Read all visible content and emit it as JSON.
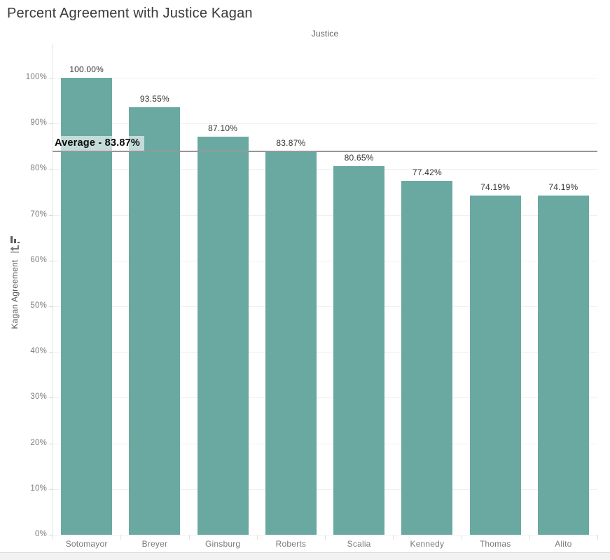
{
  "title": "Percent Agreement with Justice Kagan",
  "column_header": "Justice",
  "y_axis_title": "Kagan Agreement",
  "colors": {
    "bar": "#6aa9a2",
    "gridline": "#f0f0f0",
    "axis_line": "#e1e1e1",
    "average_line": "#979797",
    "value_label": "#333333",
    "tick_label": "#7e7e7e",
    "title_text": "#3a3a3a"
  },
  "chart_data": {
    "type": "bar",
    "title": "Percent Agreement with Justice Kagan",
    "xlabel": "Justice",
    "ylabel": "Kagan Agreement",
    "categories": [
      "Sotomayor",
      "Breyer",
      "Ginsburg",
      "Roberts",
      "Scalia",
      "Kennedy",
      "Thomas",
      "Alito"
    ],
    "values": [
      100.0,
      93.55,
      87.1,
      83.87,
      80.65,
      77.42,
      74.19,
      74.19
    ],
    "value_labels": [
      "100.00%",
      "93.55%",
      "87.10%",
      "83.87%",
      "80.65%",
      "77.42%",
      "74.19%",
      "74.19%"
    ],
    "y_ticks": [
      {
        "pct": 0,
        "label": "0%"
      },
      {
        "pct": 10,
        "label": "10%"
      },
      {
        "pct": 20,
        "label": "20%"
      },
      {
        "pct": 30,
        "label": "30%"
      },
      {
        "pct": 40,
        "label": "40%"
      },
      {
        "pct": 50,
        "label": "50%"
      },
      {
        "pct": 60,
        "label": "60%"
      },
      {
        "pct": 70,
        "label": "70%"
      },
      {
        "pct": 80,
        "label": "80%"
      },
      {
        "pct": 90,
        "label": "90%"
      },
      {
        "pct": 100,
        "label": "100%"
      }
    ],
    "ylim": [
      0,
      100
    ],
    "grid": true,
    "legend": false,
    "sort": "descending",
    "average_line": {
      "value": 83.87,
      "label": "Average - 83.87%"
    }
  }
}
